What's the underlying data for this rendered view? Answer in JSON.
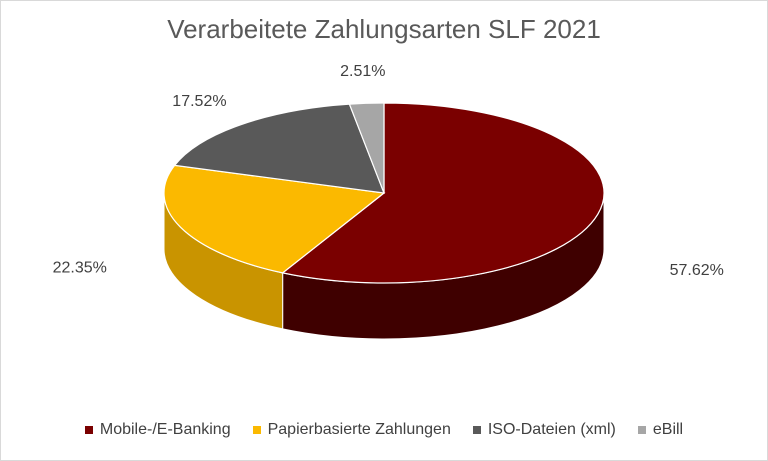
{
  "chart_data": {
    "type": "pie",
    "title": "Verarbeitete Zahlungsarten SLF 2021",
    "slices": [
      {
        "label": "Mobile-/E-Banking",
        "value": 57.62,
        "data_label": "57.62%",
        "color": "#7a0000",
        "side_color": "#3f0000"
      },
      {
        "label": "Papierbasierte Zahlungen",
        "value": 22.35,
        "data_label": "22.35%",
        "color": "#fbb900",
        "side_color": "#c99400"
      },
      {
        "label": "ISO-Dateien (xml)",
        "value": 17.52,
        "data_label": "17.52%",
        "color": "#595959",
        "side_color": "#333333"
      },
      {
        "label": "eBill",
        "value": 2.51,
        "data_label": "2.51%",
        "color": "#a6a6a6",
        "side_color": "#7a7a7a"
      }
    ],
    "legend_position": "bottom",
    "three_d": true
  }
}
